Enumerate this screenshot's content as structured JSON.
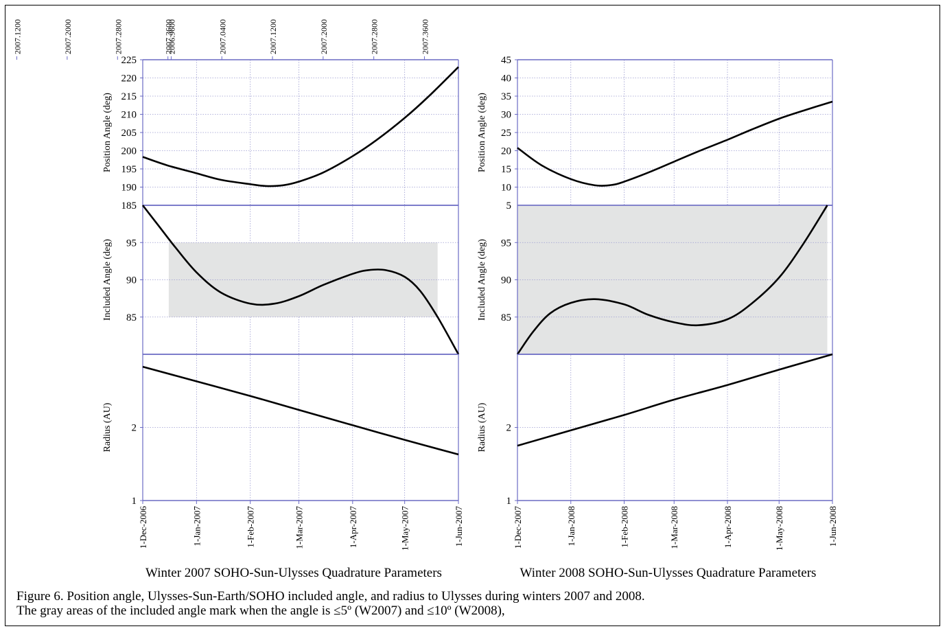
{
  "caption": {
    "line1": "Figure 6. Position angle, Ulysses-Sun-Earth/SOHO included angle, and radius to Ulysses during winters 2007 and 2008.",
    "line2": "The gray areas of the included angle mark when the angle is ≤5º (W2007) and ≤10º (W2008),"
  },
  "colors": {
    "axis": "#6a6ac4",
    "grid": "#9a9ad0",
    "curve": "#000000",
    "shade": "#e3e4e4"
  },
  "chart_data": [
    {
      "type": "line",
      "title": "Winter 2007 SOHO-Sun-Ulysses Quadrature Parameters",
      "x_tick_labels": [
        "1-Dec-2006",
        "1-Jan-2007",
        "1-Feb-2007",
        "1-Mar-2007",
        "1-Apr-2007",
        "1-May-2007",
        "1-Jun-2007"
      ],
      "x_ticks": [
        "2006-12-01",
        "2007-01-01",
        "2007-02-01",
        "2007-03-01",
        "2007-04-01",
        "2007-05-01",
        "2007-06-01"
      ],
      "xlim": [
        "2006-12-01",
        "2007-06-01"
      ],
      "top_tick_labels": [
        "2006.9600",
        "2007.0400",
        "2007.1200",
        "2007.2000",
        "2007.2800",
        "2007.3600"
      ],
      "top_ticks": [
        2006.96,
        2007.04,
        2007.12,
        2007.2,
        2007.28,
        2007.36
      ],
      "panels": [
        {
          "ylabel": "Position Angle (deg)",
          "ylim": [
            185,
            225
          ],
          "yticks": [
            190,
            195,
            200,
            205,
            210,
            215,
            220,
            225
          ],
          "ytick_labels": [
            "190",
            "195",
            "200",
            "205",
            "210",
            "215",
            "220",
            "225"
          ],
          "grid": true,
          "series": [
            {
              "x": [
                "2006-12-01",
                "2006-12-15",
                "2007-01-01",
                "2007-01-15",
                "2007-02-01",
                "2007-02-10",
                "2007-02-20",
                "2007-03-01",
                "2007-03-15",
                "2007-04-01",
                "2007-04-15",
                "2007-05-01",
                "2007-05-15",
                "2007-06-01"
              ],
              "y": [
                198.3,
                196.0,
                193.8,
                192.0,
                190.8,
                190.3,
                190.5,
                191.5,
                194.0,
                198.5,
                203.0,
                209.0,
                215.0,
                223.0
              ]
            }
          ]
        },
        {
          "ylabel": "Included Angle (deg)",
          "ylim": [
            80,
            100
          ],
          "yticks": [
            85,
            90,
            95
          ],
          "ytick_labels": [
            "85",
            "90",
            "95"
          ],
          "extra_tick_labels": [
            {
              "value": 100,
              "label": "185"
            }
          ],
          "shade": {
            "x0": "2006-12-16",
            "x1": "2007-05-20",
            "y0": 85,
            "y1": 95
          },
          "grid": true,
          "series": [
            {
              "x": [
                "2006-12-01",
                "2006-12-10",
                "2006-12-20",
                "2007-01-01",
                "2007-01-15",
                "2007-02-01",
                "2007-02-15",
                "2007-03-01",
                "2007-03-15",
                "2007-04-01",
                "2007-04-10",
                "2007-04-20",
                "2007-05-01",
                "2007-05-10",
                "2007-05-20",
                "2007-06-01"
              ],
              "y": [
                100.0,
                97.3,
                94.3,
                91.0,
                88.3,
                86.8,
                86.8,
                87.8,
                89.3,
                90.8,
                91.3,
                91.3,
                90.4,
                88.5,
                85.0,
                80.0
              ]
            }
          ]
        },
        {
          "ylabel": "Radius (AU)",
          "ylim": [
            1,
            3
          ],
          "yticks": [
            1,
            2
          ],
          "ytick_labels": [
            "1",
            "2"
          ],
          "grid": true,
          "series": [
            {
              "x": [
                "2006-12-01",
                "2007-01-01",
                "2007-02-01",
                "2007-03-01",
                "2007-04-01",
                "2007-05-01",
                "2007-06-01"
              ],
              "y": [
                2.83,
                2.63,
                2.43,
                2.24,
                2.03,
                1.83,
                1.63
              ]
            }
          ]
        }
      ]
    },
    {
      "type": "line",
      "title": "Winter 2008 SOHO-Sun-Ulysses Quadrature Parameters",
      "x_tick_labels": [
        "1-Dec-2007",
        "1-Jan-2008",
        "1-Feb-2008",
        "1-Mar-2008",
        "1-Apr-2008",
        "1-May-2008",
        "1-Jun-2008"
      ],
      "x_ticks": [
        "2007-12-01",
        "2008-01-01",
        "2008-02-01",
        "2008-03-01",
        "2008-04-01",
        "2008-05-01",
        "2008-06-01"
      ],
      "xlim": [
        "2007-12-01",
        "2008-06-01"
      ],
      "top_tick_labels": [
        "2006.9600",
        "2007.0400",
        "2007.1200",
        "2007.2000",
        "2007.2800",
        "2007.3600"
      ],
      "top_ticks": [
        2006.96,
        2007.04,
        2007.12,
        2007.2,
        2007.28,
        2007.36
      ],
      "panels": [
        {
          "ylabel": "Position Angle (deg)",
          "ylim": [
            5,
            45
          ],
          "yticks": [
            10,
            15,
            20,
            25,
            30,
            35,
            40,
            45
          ],
          "ytick_labels": [
            "10",
            "15",
            "20",
            "25",
            "30",
            "35",
            "40",
            "45"
          ],
          "grid": true,
          "series": [
            {
              "x": [
                "2007-12-01",
                "2007-12-15",
                "2008-01-01",
                "2008-01-15",
                "2008-01-25",
                "2008-02-01",
                "2008-02-15",
                "2008-03-01",
                "2008-03-15",
                "2008-04-01",
                "2008-04-15",
                "2008-05-01",
                "2008-05-15",
                "2008-06-01"
              ],
              "y": [
                20.8,
                16.0,
                12.2,
                10.5,
                10.6,
                11.5,
                14.0,
                17.0,
                19.8,
                23.0,
                25.8,
                28.8,
                31.0,
                33.5
              ]
            }
          ]
        },
        {
          "ylabel": "Included Angle (deg)",
          "ylim": [
            80,
            100
          ],
          "yticks": [
            85,
            90,
            95
          ],
          "ytick_labels": [
            "85",
            "90",
            "95"
          ],
          "extra_tick_labels": [
            {
              "value": 100,
              "label": "5"
            }
          ],
          "shade": {
            "x0": "2007-12-01",
            "x1": "2008-05-29",
            "y0": 80,
            "y1": 100
          },
          "grid": true,
          "series": [
            {
              "x": [
                "2007-12-01",
                "2007-12-10",
                "2007-12-20",
                "2008-01-01",
                "2008-01-15",
                "2008-02-01",
                "2008-02-15",
                "2008-03-01",
                "2008-03-15",
                "2008-04-01",
                "2008-04-15",
                "2008-05-01",
                "2008-05-15",
                "2008-05-29"
              ],
              "y": [
                80.0,
                83.0,
                85.5,
                86.9,
                87.4,
                86.7,
                85.3,
                84.3,
                83.9,
                84.7,
                86.8,
                90.3,
                94.8,
                100.0
              ]
            }
          ]
        },
        {
          "ylabel": "Radius (AU)",
          "ylim": [
            1,
            3
          ],
          "yticks": [
            1,
            2
          ],
          "ytick_labels": [
            "1",
            "2"
          ],
          "grid": true,
          "series": [
            {
              "x": [
                "2007-12-01",
                "2008-01-01",
                "2008-02-01",
                "2008-03-01",
                "2008-04-01",
                "2008-05-01",
                "2008-06-01"
              ],
              "y": [
                1.75,
                1.96,
                2.17,
                2.38,
                2.58,
                2.79,
                3.0
              ]
            }
          ]
        }
      ]
    }
  ]
}
